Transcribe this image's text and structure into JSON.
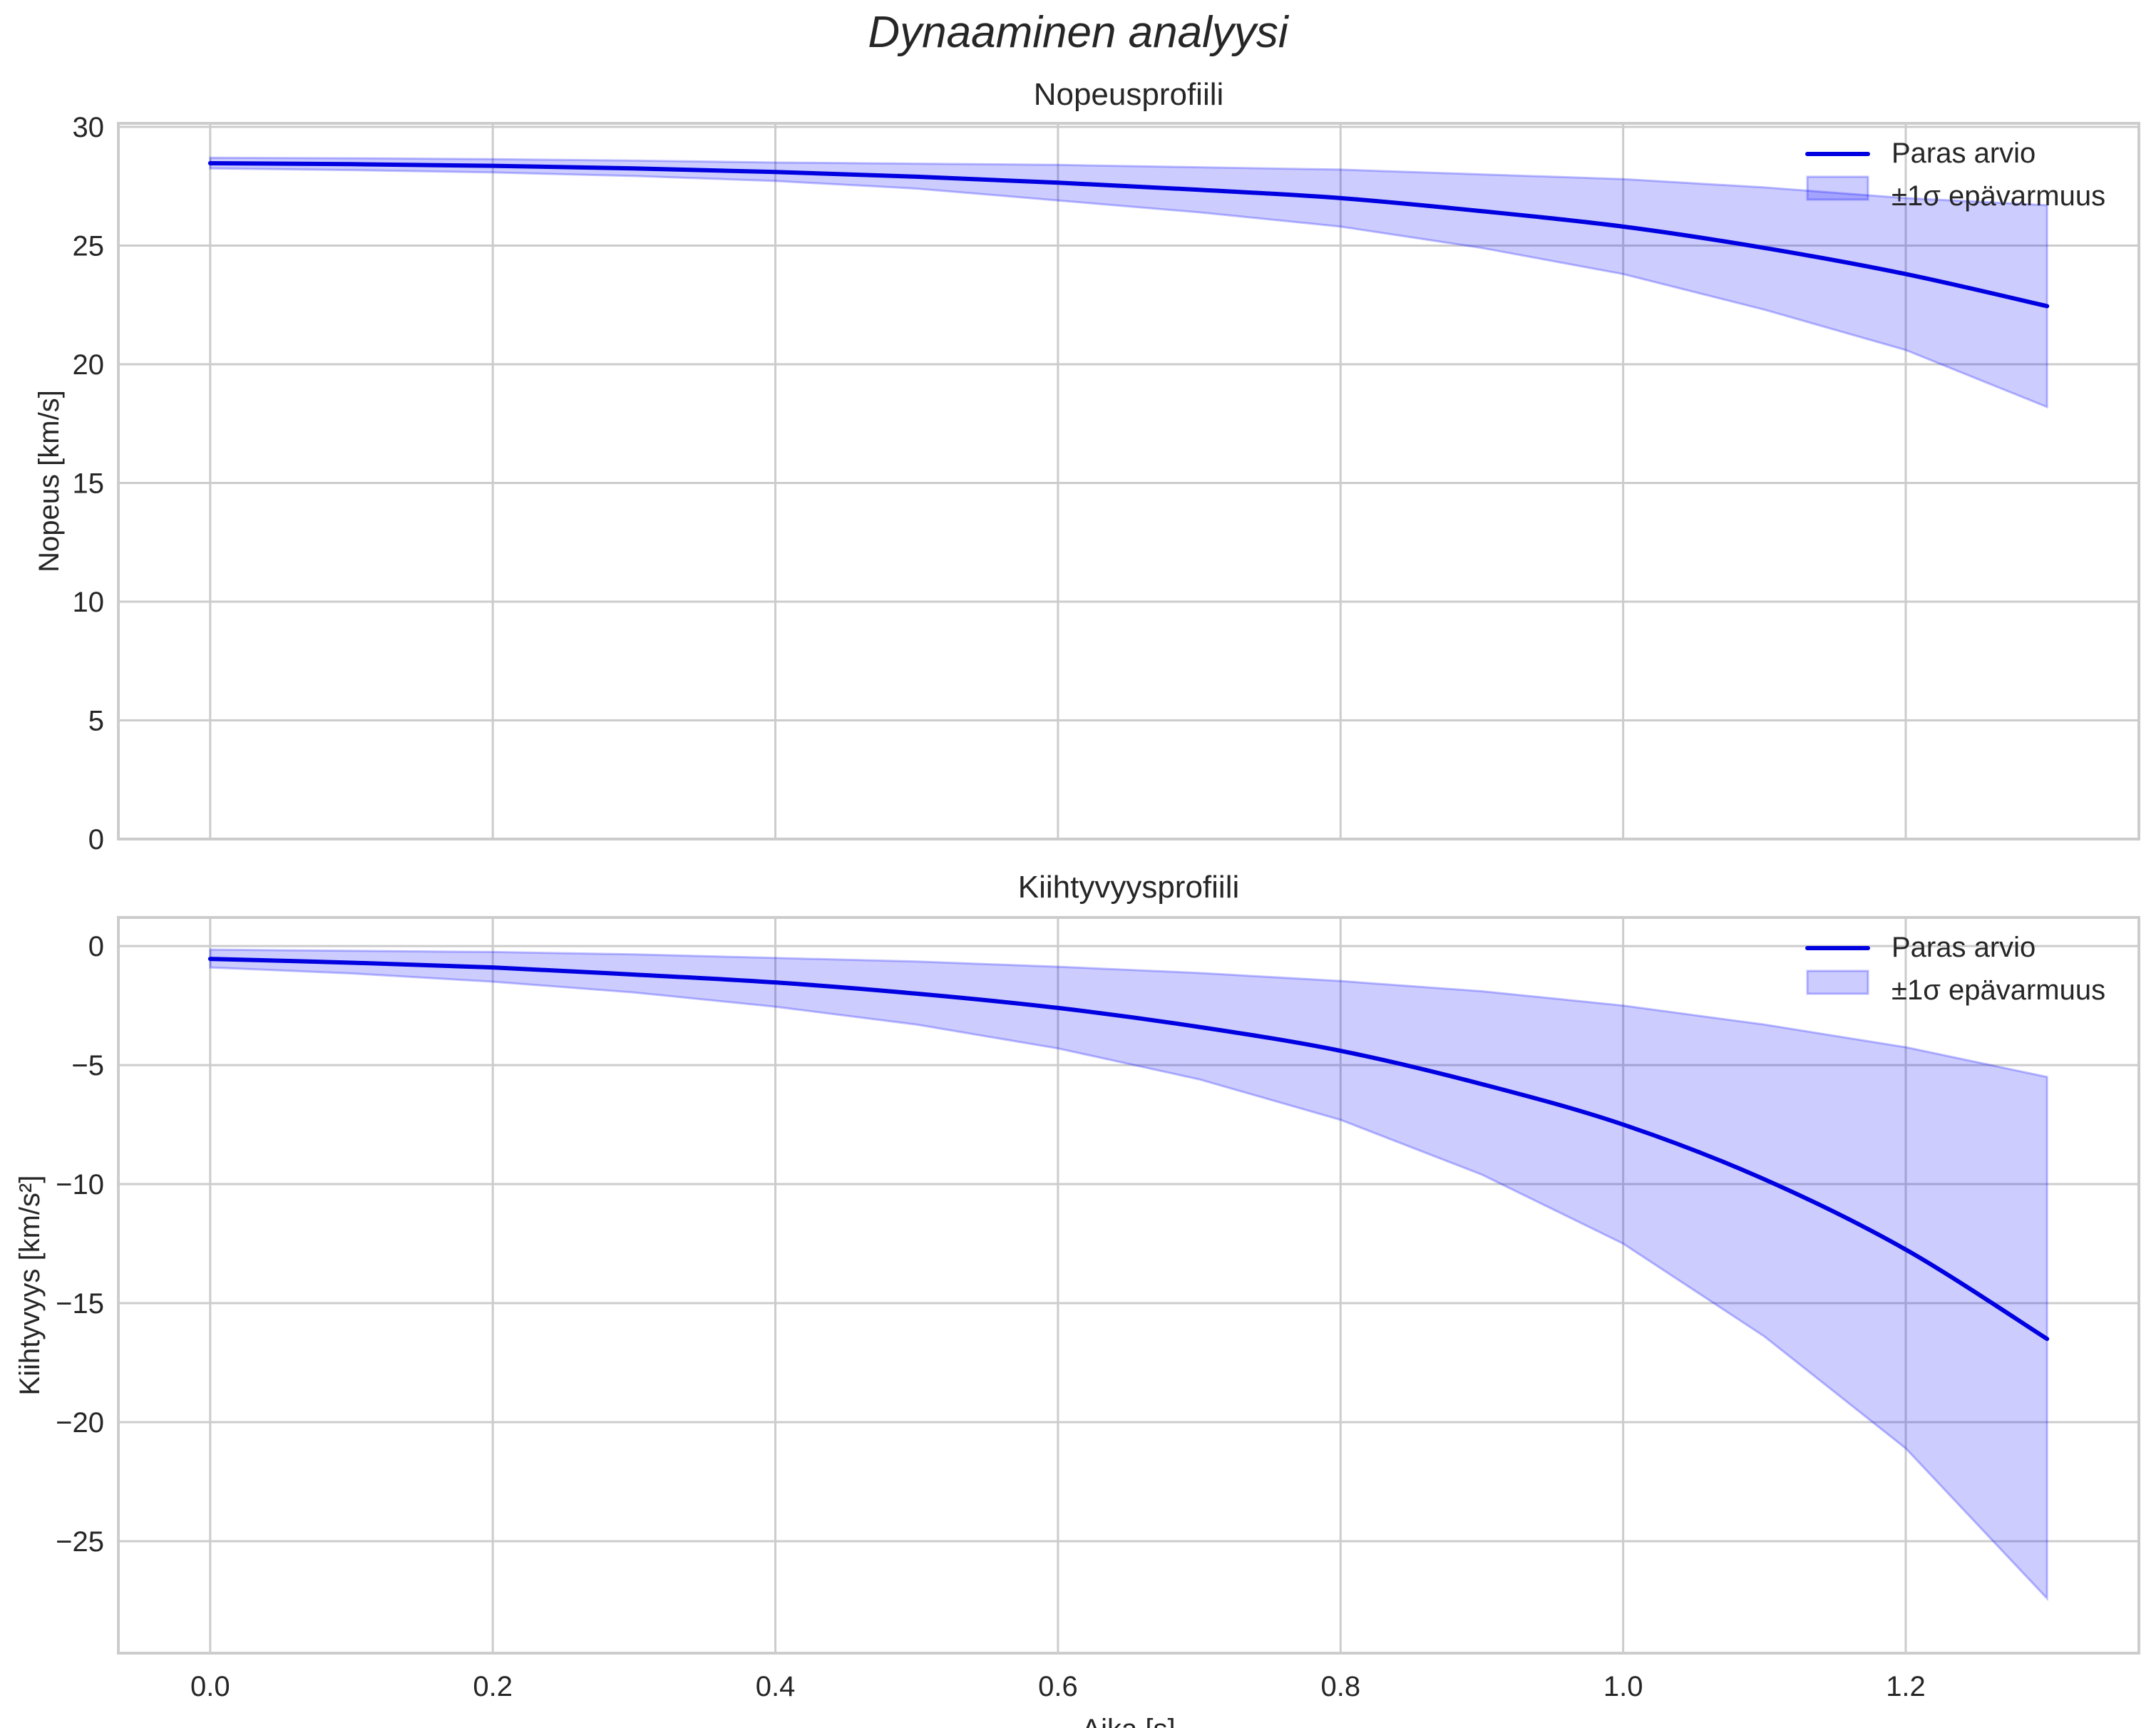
{
  "figure": {
    "title": "Dynaaminen analyysi",
    "background": "#ffffff",
    "grid_color": "#cccccc",
    "line_color": "#0000e0",
    "band_color": "#0000ff",
    "band_alpha": 0.2
  },
  "chart_data": [
    {
      "type": "line",
      "title": "Nopeusprofiili",
      "xlabel": "",
      "ylabel": "Nopeus [km/s]",
      "xlim": [
        -0.065,
        1.365
      ],
      "ylim": [
        0,
        30.15
      ],
      "grid": true,
      "xticks": [
        0.0,
        0.2,
        0.4,
        0.6,
        0.8,
        1.0,
        1.2
      ],
      "xtick_labels_visible": false,
      "yticks": [
        0,
        5,
        10,
        15,
        20,
        25,
        30
      ],
      "ytick_labels": [
        "0",
        "5",
        "10",
        "15",
        "20",
        "25",
        "30"
      ],
      "legend": {
        "position": "upper right",
        "entries": [
          "Paras arvio",
          "±1σ epävarmuus"
        ]
      },
      "x": [
        0.0,
        0.1,
        0.2,
        0.3,
        0.4,
        0.5,
        0.6,
        0.7,
        0.8,
        0.9,
        1.0,
        1.1,
        1.2,
        1.3
      ],
      "series": [
        {
          "name": "Paras arvio",
          "kind": "line",
          "values": [
            28.47,
            28.43,
            28.36,
            28.25,
            28.1,
            27.9,
            27.65,
            27.35,
            27.0,
            26.45,
            25.8,
            24.9,
            23.8,
            22.45
          ]
        },
        {
          "name": "±1σ epävarmuus",
          "kind": "band",
          "upper": [
            28.7,
            28.68,
            28.64,
            28.58,
            28.5,
            28.45,
            28.4,
            28.3,
            28.2,
            28.0,
            27.8,
            27.45,
            27.0,
            26.7
          ],
          "lower": [
            28.25,
            28.18,
            28.08,
            27.93,
            27.72,
            27.4,
            26.9,
            26.4,
            25.8,
            24.9,
            23.8,
            22.3,
            20.6,
            18.2
          ]
        }
      ]
    },
    {
      "type": "line",
      "title": "Kiihtyvyysprofiili",
      "xlabel": "Aika [s]",
      "ylabel": "Kiihtyvyys [km/s²]",
      "xlim": [
        -0.065,
        1.365
      ],
      "ylim": [
        -29.7,
        1.2
      ],
      "grid": true,
      "xticks": [
        0.0,
        0.2,
        0.4,
        0.6,
        0.8,
        1.0,
        1.2
      ],
      "xtick_labels": [
        "0.0",
        "0.2",
        "0.4",
        "0.6",
        "0.8",
        "1.0",
        "1.2"
      ],
      "yticks": [
        0,
        -5,
        -10,
        -15,
        -20,
        -25
      ],
      "ytick_labels": [
        "0",
        "−5",
        "−10",
        "−15",
        "−20",
        "−25"
      ],
      "legend": {
        "position": "upper right",
        "entries": [
          "Paras arvio",
          "±1σ epävarmuus"
        ]
      },
      "x": [
        0.0,
        0.1,
        0.2,
        0.3,
        0.4,
        0.5,
        0.6,
        0.7,
        0.8,
        0.9,
        1.0,
        1.1,
        1.2,
        1.3
      ],
      "series": [
        {
          "name": "Paras arvio",
          "kind": "line",
          "values": [
            -0.54,
            -0.7,
            -0.9,
            -1.2,
            -1.53,
            -2.0,
            -2.6,
            -3.4,
            -4.4,
            -5.8,
            -7.5,
            -9.8,
            -12.75,
            -16.5
          ]
        },
        {
          "name": "±1σ epävarmuus",
          "kind": "band",
          "upper": [
            -0.15,
            -0.2,
            -0.25,
            -0.35,
            -0.5,
            -0.65,
            -0.87,
            -1.13,
            -1.47,
            -1.9,
            -2.5,
            -3.3,
            -4.25,
            -5.5
          ],
          "lower": [
            -0.9,
            -1.15,
            -1.5,
            -1.95,
            -2.55,
            -3.3,
            -4.3,
            -5.6,
            -7.3,
            -9.6,
            -12.5,
            -16.4,
            -21.1,
            -27.4
          ]
        }
      ]
    }
  ]
}
